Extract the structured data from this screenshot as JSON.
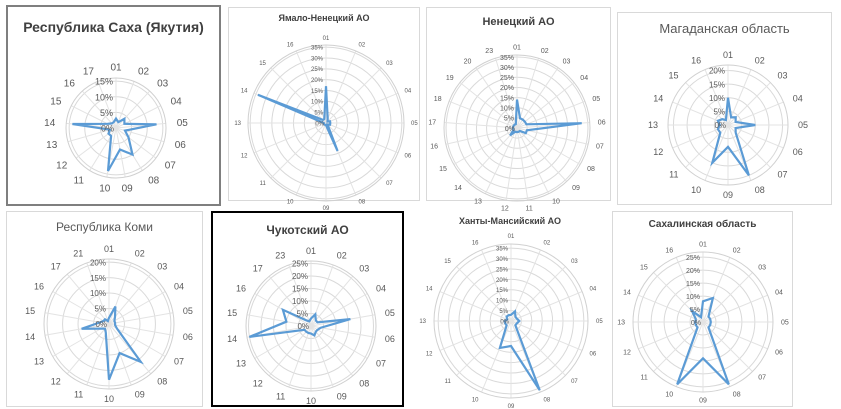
{
  "chart_data": [
    {
      "type": "radar",
      "title": "Республика Саха (Якутия)",
      "categories": [
        "01",
        "02",
        "03",
        "04",
        "05",
        "06",
        "07",
        "08",
        "09",
        "10",
        "11",
        "12",
        "13",
        "14",
        "15",
        "16",
        "17"
      ],
      "axis_labels": [
        "5%",
        "10%",
        "15%"
      ],
      "rmax": 16,
      "series": [
        {
          "values": [
            3,
            2,
            4,
            3,
            13,
            3,
            5,
            10,
            7,
            14,
            3,
            3,
            2,
            14,
            3,
            2,
            2
          ]
        }
      ],
      "color": "#5b9bd5"
    },
    {
      "type": "radar",
      "title": "Ямало-Ненецкий АО",
      "categories": [
        "01",
        "02",
        "03",
        "04",
        "05",
        "06",
        "07",
        "08",
        "09",
        "10",
        "11",
        "12",
        "13",
        "14",
        "15",
        "16"
      ],
      "axis_labels": [
        "5%",
        "10%",
        "15%",
        "20%",
        "25%",
        "30%",
        "35%"
      ],
      "rmax": 36,
      "series": [
        {
          "values": [
            17,
            2,
            1,
            2,
            2,
            2,
            1,
            14,
            1,
            1,
            1,
            1,
            1,
            34,
            2,
            2
          ]
        }
      ],
      "color": "#5b9bd5"
    },
    {
      "type": "radar",
      "title": "Ненецкий АО",
      "categories": [
        "01",
        "02",
        "03",
        "04",
        "05",
        "06",
        "07",
        "08",
        "09",
        "10",
        "11",
        "12",
        "13",
        "14",
        "15",
        "16",
        "17",
        "18",
        "19",
        "20",
        "23"
      ],
      "axis_labels": [
        "5%",
        "10%",
        "15%",
        "20%",
        "25%",
        "30%",
        "35%"
      ],
      "rmax": 36,
      "series": [
        {
          "values": [
            14,
            5,
            5,
            5,
            5,
            32,
            5,
            5,
            2,
            2,
            2,
            2,
            2,
            5,
            2,
            2,
            2,
            2,
            2,
            2,
            2
          ]
        }
      ],
      "color": "#5b9bd5"
    },
    {
      "type": "radar",
      "title": "Магаданская область",
      "categories": [
        "01",
        "02",
        "03",
        "04",
        "05",
        "06",
        "07",
        "08",
        "09",
        "10",
        "11",
        "12",
        "13",
        "14",
        "15",
        "16"
      ],
      "axis_labels": [
        "5%",
        "10%",
        "15%",
        "20%"
      ],
      "rmax": 22,
      "series": [
        {
          "values": [
            10,
            3,
            4,
            3,
            10,
            3,
            4,
            20,
            8,
            15,
            4,
            4,
            3,
            4,
            3,
            2
          ]
        }
      ],
      "color": "#5b9bd5"
    },
    {
      "type": "radar",
      "title": "Республика Коми",
      "categories": [
        "01",
        "02",
        "03",
        "04",
        "05",
        "06",
        "07",
        "08",
        "09",
        "10",
        "11",
        "12",
        "13",
        "14",
        "15",
        "16",
        "17",
        "21"
      ],
      "axis_labels": [
        "5%",
        "10%",
        "15%",
        "20%"
      ],
      "rmax": 21,
      "series": [
        {
          "values": [
            2,
            6,
            3,
            2,
            2,
            2,
            3,
            16,
            10,
            18,
            3,
            2,
            3,
            9,
            3,
            2,
            2,
            1
          ]
        }
      ],
      "color": "#5b9bd5"
    },
    {
      "type": "radar",
      "title": "Чукотский АО",
      "categories": [
        "01",
        "02",
        "03",
        "04",
        "05",
        "06",
        "07",
        "08",
        "09",
        "10",
        "11",
        "12",
        "13",
        "14",
        "15",
        "16",
        "17",
        "23"
      ],
      "axis_labels": [
        "5%",
        "10%",
        "15%",
        "20%",
        "25%"
      ],
      "rmax": 26,
      "series": [
        {
          "values": [
            3,
            5,
            3,
            3,
            16,
            4,
            3,
            3,
            4,
            3,
            3,
            3,
            3,
            25,
            10,
            13,
            3,
            2
          ]
        }
      ],
      "color": "#5b9bd5"
    },
    {
      "type": "radar",
      "title": "Ханты-Мансийский АО",
      "categories": [
        "01",
        "02",
        "03",
        "04",
        "05",
        "06",
        "07",
        "08",
        "09",
        "10",
        "11",
        "12",
        "13",
        "14",
        "15",
        "16"
      ],
      "axis_labels": [
        "5%",
        "10%",
        "15%",
        "20%",
        "25%",
        "30%",
        "35%"
      ],
      "rmax": 37,
      "series": [
        {
          "values": [
            3,
            5,
            3,
            3,
            4,
            3,
            3,
            36,
            12,
            14,
            3,
            3,
            3,
            2,
            3,
            3
          ]
        }
      ],
      "color": "#5b9bd5"
    },
    {
      "type": "radar",
      "title": "Сахалинская область",
      "categories": [
        "01",
        "02",
        "03",
        "04",
        "05",
        "06",
        "07",
        "08",
        "09",
        "10",
        "11",
        "12",
        "13",
        "14",
        "15",
        "16"
      ],
      "axis_labels": [
        "5%",
        "10%",
        "15%",
        "20%",
        "25%"
      ],
      "rmax": 27,
      "series": [
        {
          "values": [
            8,
            10,
            3,
            3,
            3,
            3,
            3,
            26,
            14,
            26,
            3,
            3,
            3,
            3,
            6,
            2
          ]
        }
      ],
      "color": "#5b9bd5"
    }
  ]
}
